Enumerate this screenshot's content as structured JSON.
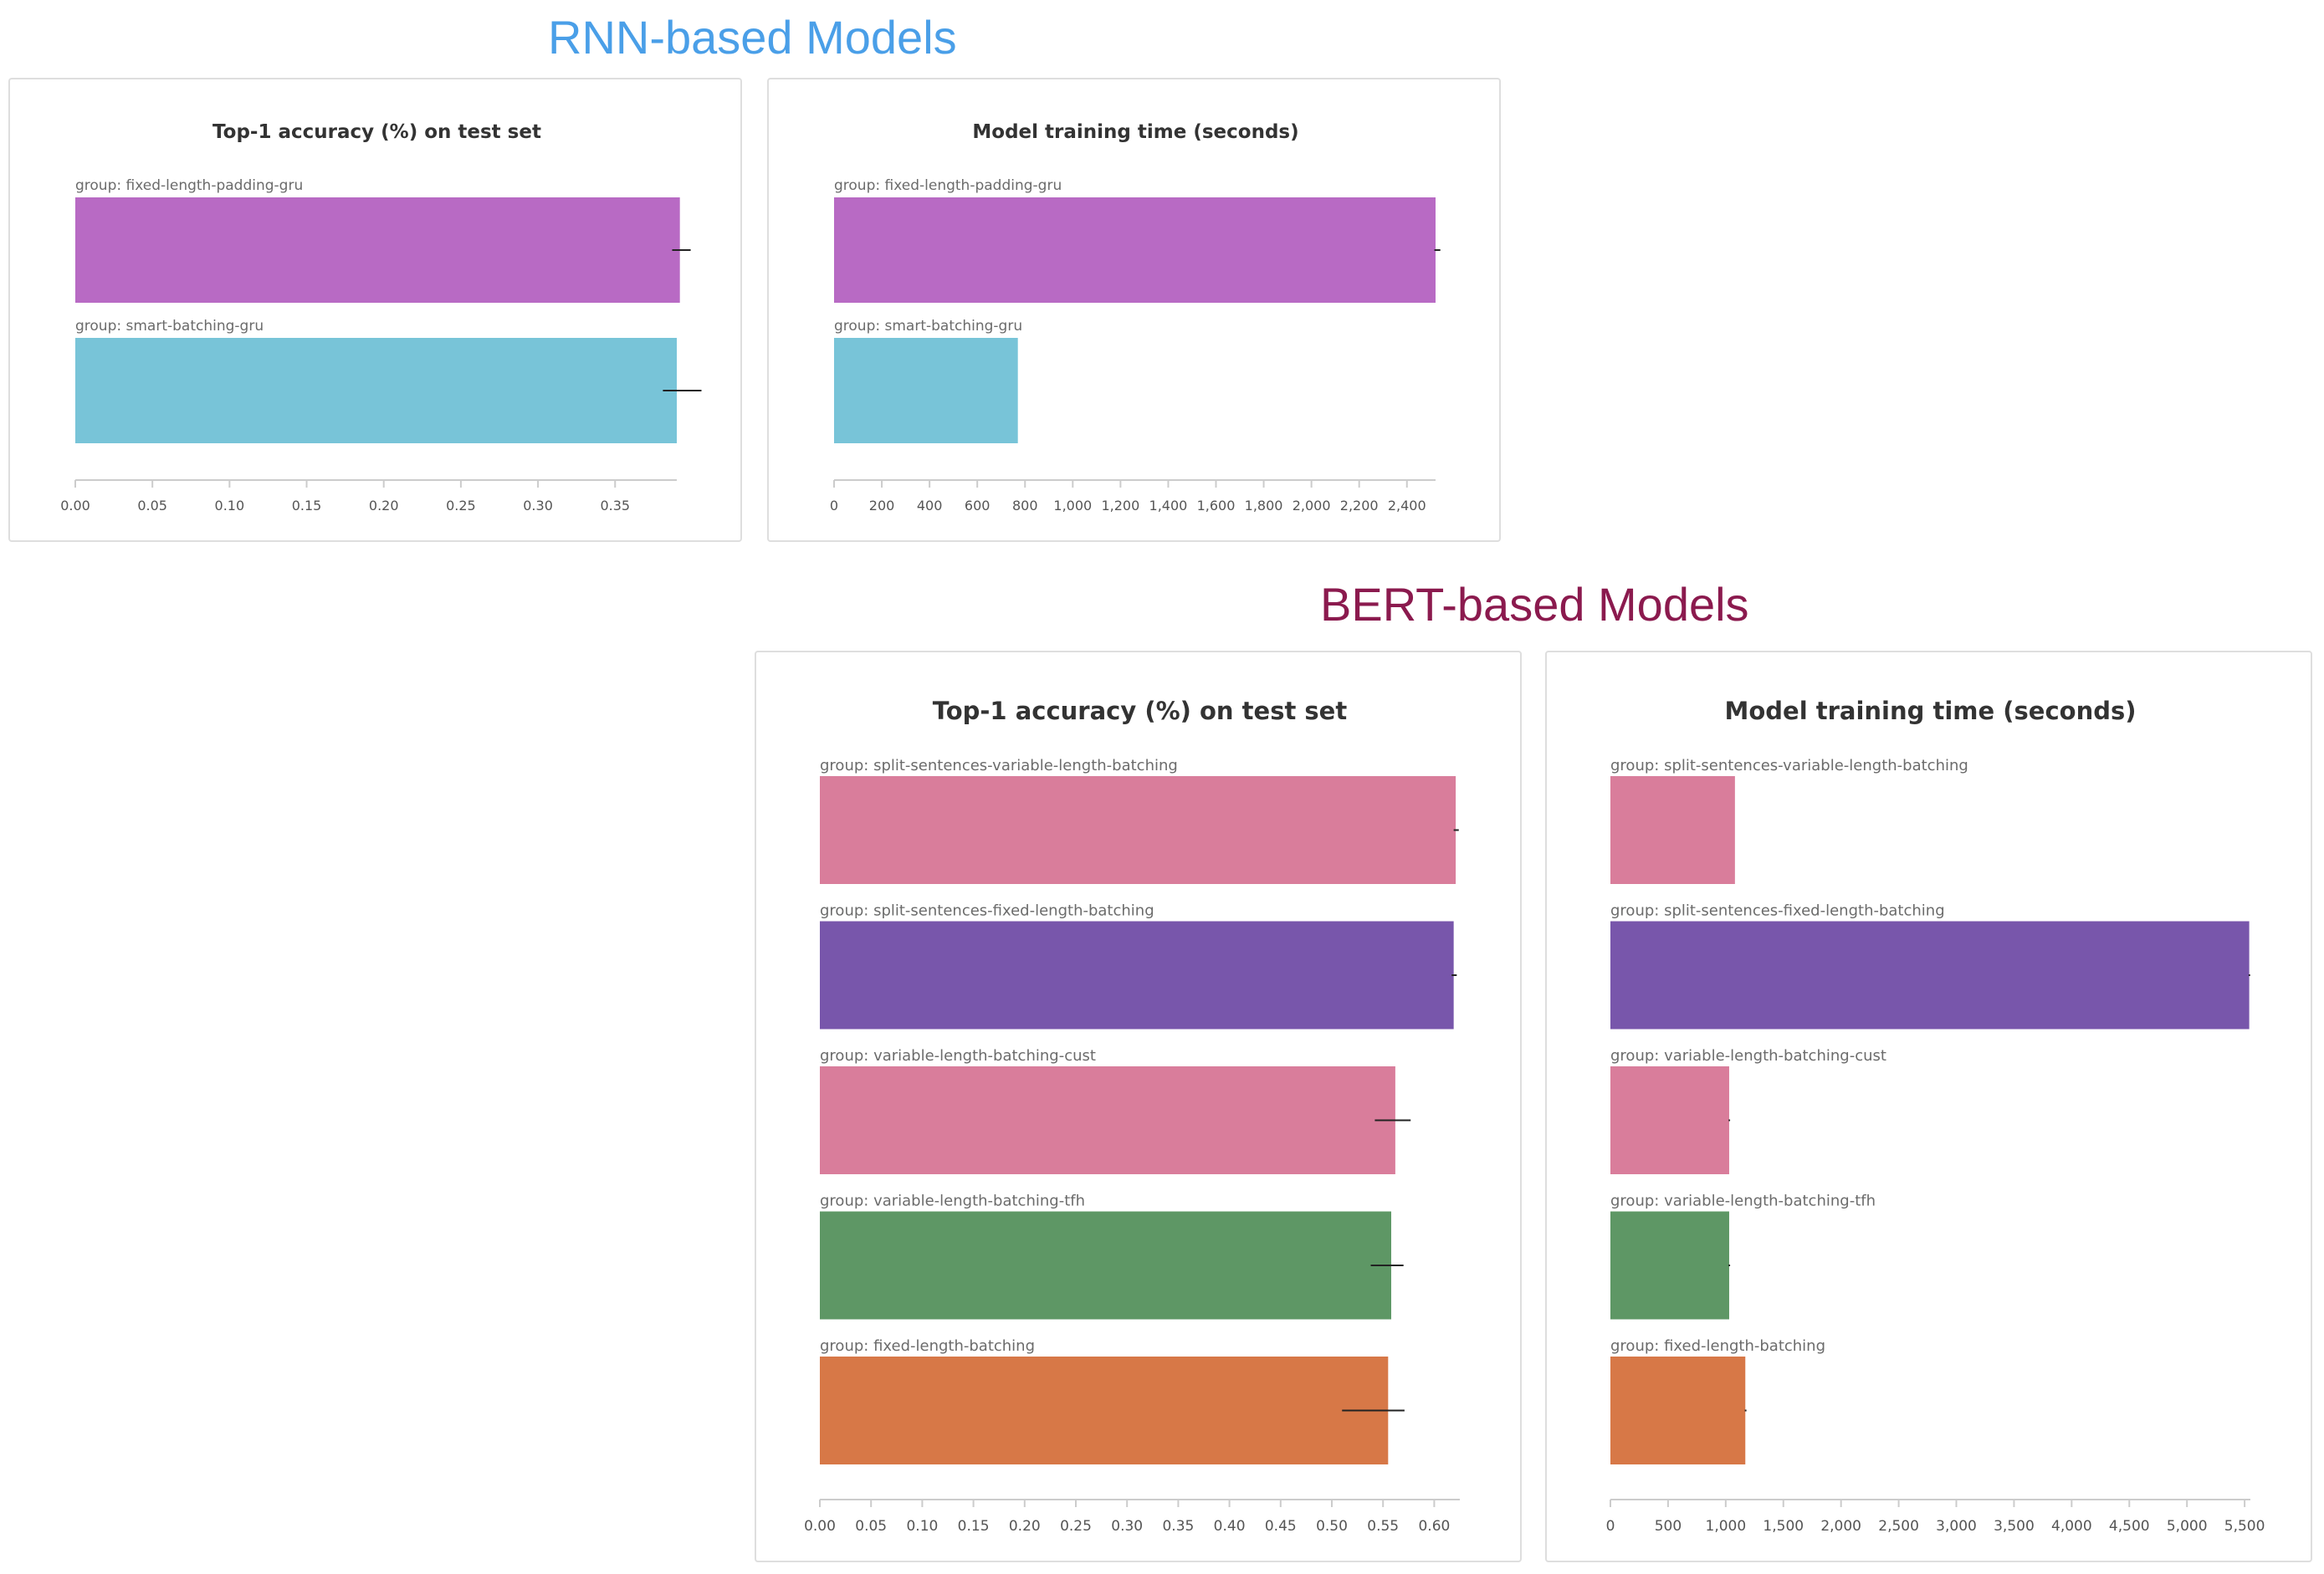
{
  "sections": {
    "rnn": {
      "title": "RNN-based Models",
      "color": "#4a9fe8"
    },
    "bert": {
      "title": "BERT-based Models",
      "color": "#8b1a4e"
    }
  },
  "chart_data": [
    {
      "id": "rnn-accuracy",
      "type": "bar",
      "orientation": "horizontal",
      "title": "Top-1 accuracy (%) on test set",
      "group_prefix": "group: ",
      "xlim": [
        0,
        0.39
      ],
      "ticks": [
        0.0,
        0.05,
        0.1,
        0.15,
        0.2,
        0.25,
        0.3,
        0.35
      ],
      "tick_labels": [
        "0.00",
        "0.05",
        "0.10",
        "0.15",
        "0.20",
        "0.25",
        "0.30",
        "0.35"
      ],
      "categories": [
        "fixed-length-padding-gru",
        "smart-batching-gru"
      ],
      "values": [
        0.392,
        0.39
      ],
      "error_low": [
        0.387,
        0.381
      ],
      "error_high": [
        0.399,
        0.406
      ],
      "colors": [
        "#b86ac4",
        "#78c4d8"
      ]
    },
    {
      "id": "rnn-time",
      "type": "bar",
      "orientation": "horizontal",
      "title": "Model training time (seconds)",
      "group_prefix": "group: ",
      "xlim": [
        0,
        2520
      ],
      "ticks": [
        0,
        200,
        400,
        600,
        800,
        1000,
        1200,
        1400,
        1600,
        1800,
        2000,
        2200,
        2400
      ],
      "tick_labels": [
        "0",
        "200",
        "400",
        "600",
        "800",
        "1,000",
        "1,200",
        "1,400",
        "1,600",
        "1,800",
        "2,000",
        "2,200",
        "2,400"
      ],
      "categories": [
        "fixed-length-padding-gru",
        "smart-batching-gru"
      ],
      "values": [
        2520,
        770
      ],
      "error_low": [
        2515,
        770
      ],
      "error_high": [
        2540,
        770
      ],
      "colors": [
        "#b86ac4",
        "#78c4d8"
      ]
    },
    {
      "id": "bert-accuracy",
      "type": "bar",
      "orientation": "horizontal",
      "title": "Top-1 accuracy (%) on test set",
      "group_prefix": "group: ",
      "xlim": [
        0,
        0.625
      ],
      "ticks": [
        0.0,
        0.05,
        0.1,
        0.15,
        0.2,
        0.25,
        0.3,
        0.35,
        0.4,
        0.45,
        0.5,
        0.55,
        0.6
      ],
      "tick_labels": [
        "0.00",
        "0.05",
        "0.10",
        "0.15",
        "0.20",
        "0.25",
        "0.30",
        "0.35",
        "0.40",
        "0.45",
        "0.50",
        "0.55",
        "0.60"
      ],
      "categories": [
        "split-sentences-variable-length-batching",
        "split-sentences-fixed-length-batching",
        "variable-length-batching-cust",
        "variable-length-batching-tfh",
        "fixed-length-batching"
      ],
      "values": [
        0.621,
        0.619,
        0.562,
        0.558,
        0.555
      ],
      "error_low": [
        0.619,
        0.617,
        0.542,
        0.538,
        0.51
      ],
      "error_high": [
        0.624,
        0.622,
        0.577,
        0.57,
        0.571
      ],
      "colors": [
        "#d97d9b",
        "#7856ab",
        "#d97d9b",
        "#5e9765",
        "#d77847"
      ]
    },
    {
      "id": "bert-time",
      "type": "bar",
      "orientation": "horizontal",
      "title": "Model training time (seconds)",
      "group_prefix": "group: ",
      "xlim": [
        0,
        5550
      ],
      "ticks": [
        0,
        500,
        1000,
        1500,
        2000,
        2500,
        3000,
        3500,
        4000,
        4500,
        5000,
        5500
      ],
      "tick_labels": [
        "0",
        "500",
        "1,000",
        "1,500",
        "2,000",
        "2,500",
        "3,000",
        "3,500",
        "4,000",
        "4,500",
        "5,000",
        "5,500"
      ],
      "categories": [
        "split-sentences-variable-length-batching",
        "split-sentences-fixed-length-batching",
        "variable-length-batching-cust",
        "variable-length-batching-tfh",
        "fixed-length-batching"
      ],
      "values": [
        1080,
        5540,
        1030,
        1030,
        1170
      ],
      "error_low": [
        1080,
        5535,
        1025,
        1025,
        1165
      ],
      "error_high": [
        1080,
        5548,
        1038,
        1038,
        1180
      ],
      "colors": [
        "#d97d9b",
        "#7856ab",
        "#d97d9b",
        "#5e9765",
        "#d77847"
      ]
    }
  ]
}
